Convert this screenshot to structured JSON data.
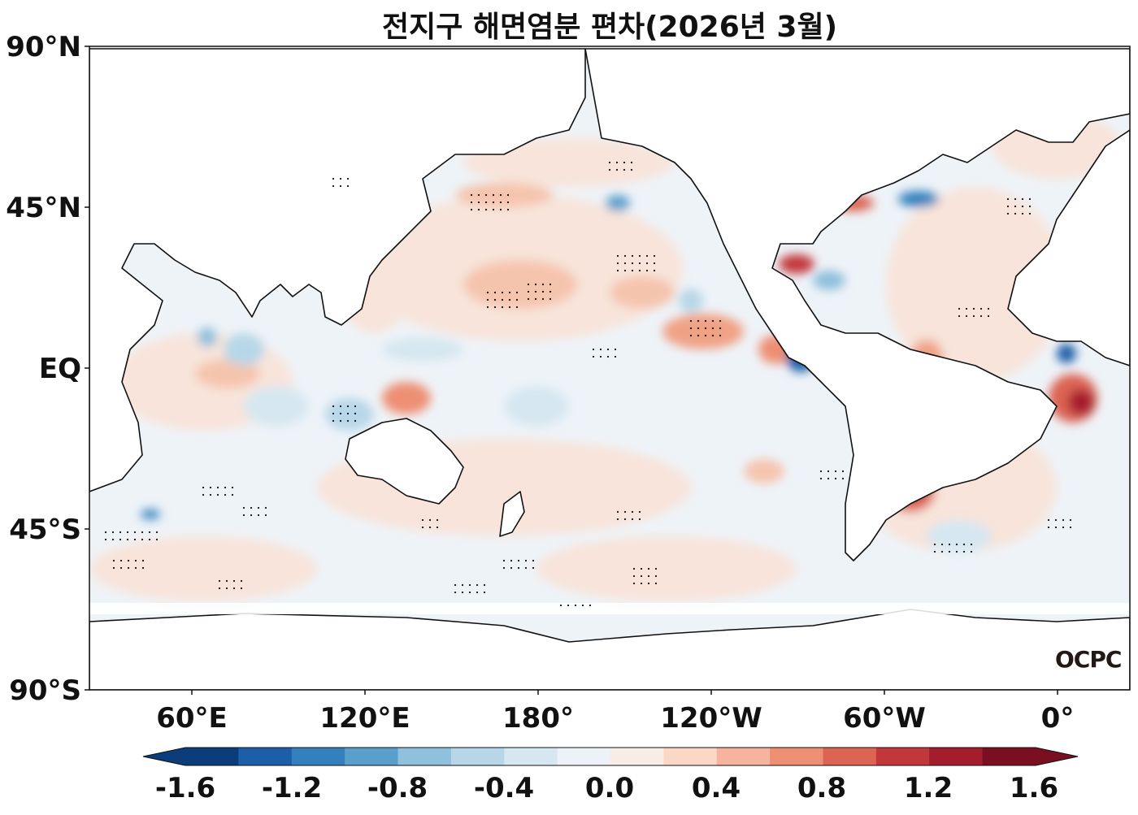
{
  "title": "전지구 해면염분 편차(2026년 3월)",
  "y_axis": {
    "ticks": [
      "90°N",
      "45°N",
      "EQ",
      "45°S",
      "90°S"
    ],
    "values": [
      90,
      45,
      0,
      -45,
      -90
    ]
  },
  "x_axis": {
    "ticks": [
      "60°E",
      "120°E",
      "180°",
      "120°W",
      "60°W",
      "0°"
    ],
    "values": [
      60,
      120,
      180,
      240,
      300,
      360
    ]
  },
  "colorbar": {
    "ticks": [
      "-1.6",
      "-1.2",
      "-0.8",
      "-0.4",
      "0.0",
      "0.4",
      "0.8",
      "1.2",
      "1.6"
    ],
    "colors": [
      "#0a3d7a",
      "#1c5ea8",
      "#3380bd",
      "#5a9fcc",
      "#8fc0dc",
      "#b7d7e8",
      "#d6e7f1",
      "#ecf2f7",
      "#f8ece6",
      "#fbd7c6",
      "#f5b49b",
      "#ee8f73",
      "#dc6453",
      "#c2383a",
      "#a51c2d",
      "#7a0f22"
    ]
  },
  "logo": "OCPC",
  "ocean_base_color": "#eef3f8"
}
